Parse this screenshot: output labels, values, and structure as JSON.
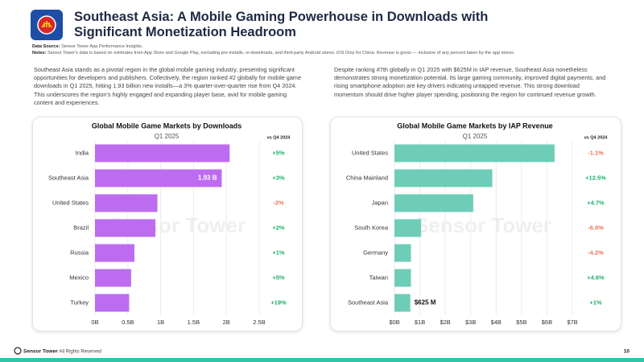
{
  "header": {
    "title": "Southeast Asia: A Mobile Gaming Powerhouse in Downloads with Significant Monetization Headroom",
    "source_label": "Data Source:",
    "source": "Sensor Tower App Performance Insights.",
    "notes_label": "Notes:",
    "notes": "Sensor Tower's data is based on estimates from App Store and Google Play, excluding pre-installs, re-downloads, and third-party Android stores. iOS Only for China.  Revenue is gross — inclusive of any percent taken by the app stores."
  },
  "paragraphs": [
    "Southeast Asia stands as a pivotal region in the global mobile gaming industry, presenting significant opportunities for developers and publishers. Collectively, the region ranked #2 globally for mobile game downloads in Q1 2025, hitting 1.93 billion new installs—a 3% quarter-over-quarter rise from Q4 2024. This underscores the region's highly engaged and expanding player base, avid for mobile gaming content and experiences.",
    "Despite ranking #7th globally in Q1 2025 with $625M in IAP revenue, Southeast Asia nonetheless demonstrates strong monetization potential. Its large gaming community, improved digital payments, and rising smartphone adoption are key drivers indicating untapped revenue. This strong download momentum should drive higher player spending, positioning the region for continued revenue growth."
  ],
  "watermark": "Sensor Tower",
  "chart_data": [
    {
      "type": "hbar",
      "title": "Global Mobile Game Markets by Downloads",
      "subtitle": "Q1 2025",
      "categories": [
        "India",
        "Southeast Asia",
        "United States",
        "Brazil",
        "Russia",
        "Mexico",
        "Turkey"
      ],
      "values": [
        2.05,
        1.93,
        0.95,
        0.92,
        0.6,
        0.55,
        0.52
      ],
      "value_labels": [
        null,
        "1.93 B",
        null,
        null,
        null,
        null,
        null
      ],
      "value_label_position": "inside",
      "color": "#bd6cf0",
      "xlim": [
        0,
        2.5
      ],
      "xticks": [
        {
          "value": 0,
          "label": "0B"
        },
        {
          "value": 0.5,
          "label": "0.5B"
        },
        {
          "value": 1,
          "label": "1B"
        },
        {
          "value": 1.5,
          "label": "1.5B"
        },
        {
          "value": 2,
          "label": "2B"
        },
        {
          "value": 2.5,
          "label": "2.5B"
        }
      ],
      "grid": true,
      "change_header": "vs Q4 2024",
      "changes": [
        "+5%",
        "+3%",
        "-2%",
        "+2%",
        "+1%",
        "+5%",
        "+19%"
      ]
    },
    {
      "type": "hbar",
      "title": "Global Mobile Game Markets by IAP Revenue",
      "subtitle": "Q1 2025",
      "categories": [
        "United States",
        "China Mainland",
        "Japan",
        "South Korea",
        "Germany",
        "Taiwan",
        "Southeast Asia"
      ],
      "values": [
        6.3,
        3.85,
        3.1,
        1.05,
        0.65,
        0.65,
        0.625
      ],
      "value_labels": [
        null,
        null,
        null,
        null,
        null,
        null,
        "$625 M"
      ],
      "value_label_position": "outside",
      "color": "#6ecdb9",
      "xlim": [
        0,
        7
      ],
      "xticks": [
        {
          "value": 0,
          "label": "$0B"
        },
        {
          "value": 1,
          "label": "$1B"
        },
        {
          "value": 2,
          "label": "$2B"
        },
        {
          "value": 3,
          "label": "$3B"
        },
        {
          "value": 4,
          "label": "$4B"
        },
        {
          "value": 5,
          "label": "$5B"
        },
        {
          "value": 6,
          "label": "$6B"
        },
        {
          "value": 7,
          "label": "$7B"
        }
      ],
      "grid": true,
      "change_header": "vs Q4 2024",
      "changes": [
        "-1.1%",
        "+12.5%",
        "+4.7%",
        "-6.0%",
        "-4.2%",
        "+4.6%",
        "+1%"
      ]
    }
  ],
  "footer": {
    "brand": "Sensor Tower",
    "rights": "- All Rights Reserved",
    "page": 10
  }
}
